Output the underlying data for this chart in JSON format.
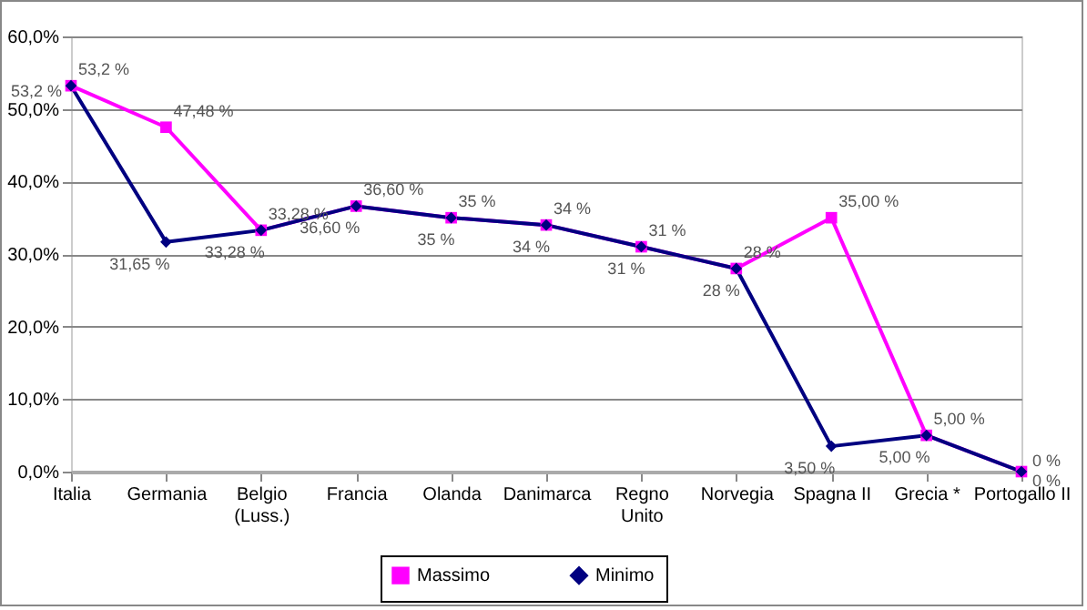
{
  "chart_data": {
    "type": "line",
    "categories": [
      "Italia",
      "Germania",
      "Belgio\n(Luss.)",
      "Francia",
      "Olanda",
      "Danimarca",
      "Regno\nUnito",
      "Norvegia",
      "Spagna II",
      "Grecia *",
      "Portogallo II"
    ],
    "series": [
      {
        "name": "Massimo",
        "color": "#ff00ff",
        "marker": "square",
        "values": [
          53.2,
          47.48,
          33.28,
          36.6,
          35,
          34,
          31,
          28,
          35,
          5,
          0
        ],
        "value_labels": [
          "53,2 %",
          "47,48 %",
          "33,28 %",
          "36,60 %",
          "35 %",
          "34 %",
          "31 %",
          "28 %",
          "35,00 %",
          "5,00 %",
          "0 %"
        ]
      },
      {
        "name": "Minimo",
        "color": "#000080",
        "marker": "diamond",
        "values": [
          53.2,
          31.65,
          33.28,
          36.6,
          35,
          34,
          31,
          28,
          3.5,
          5,
          0
        ],
        "value_labels": [
          "53,2 %",
          "31,65 %",
          "33,28 %",
          "36,60 %",
          "35 %",
          "34 %",
          "31 %",
          "28 %",
          "3,50 %",
          "5,00 %",
          "0 %"
        ]
      }
    ],
    "ylim": [
      0,
      60
    ],
    "yticks": [
      {
        "value": 0,
        "label": "0,0%"
      },
      {
        "value": 10,
        "label": "10,0%"
      },
      {
        "value": 20,
        "label": "20,0%"
      },
      {
        "value": 30,
        "label": "30,0%"
      },
      {
        "value": 40,
        "label": "40,0%"
      },
      {
        "value": 50,
        "label": "50,0%"
      },
      {
        "value": 60,
        "label": "60,0%"
      }
    ],
    "grid": "y",
    "legend": "bottom"
  }
}
